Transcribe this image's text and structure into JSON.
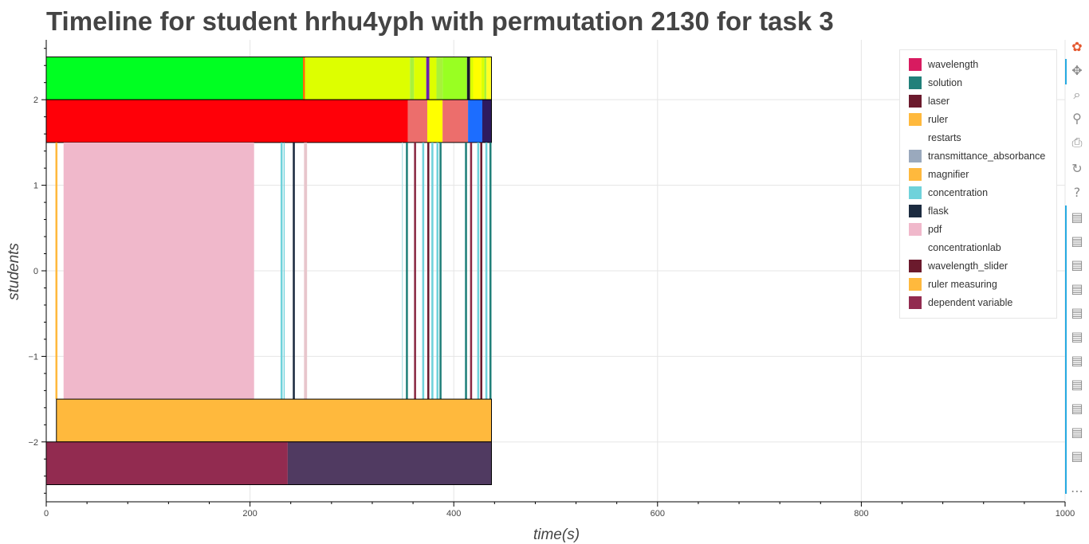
{
  "title": "Timeline for student hrhu4yph with permutation 2130 for task 3",
  "chart_data": {
    "type": "timeline",
    "xlabel": "time(s)",
    "ylabel": "students",
    "xlim": [
      0,
      1000
    ],
    "ylim": [
      -2.7,
      2.7
    ],
    "x_ticks": [
      0,
      200,
      400,
      600,
      800,
      1000
    ],
    "y_ticks": [
      -2,
      -1,
      0,
      1,
      2
    ],
    "x_tick_labels": [
      "0",
      "200",
      "400",
      "600",
      "800",
      "1000"
    ],
    "y_tick_labels": [
      "−2",
      "−1",
      "0",
      "1",
      "2"
    ],
    "grid": true,
    "legend_position": "top-right",
    "legend": [
      {
        "label": "wavelength",
        "color": "#d81b60"
      },
      {
        "label": "solution",
        "color": "#21807a"
      },
      {
        "label": "laser",
        "color": "#6b1a2d"
      },
      {
        "label": "ruler",
        "color": "#ffb93d"
      },
      {
        "label": "restarts",
        "color": ""
      },
      {
        "label": "transmittance_absorbance",
        "color": "#9aa9bd"
      },
      {
        "label": "magnifier",
        "color": "#ffb93d"
      },
      {
        "label": "concentration",
        "color": "#6fd2db"
      },
      {
        "label": "flask",
        "color": "#1c2b40"
      },
      {
        "label": "pdf",
        "color": "#f0b8cb"
      },
      {
        "label": "concentrationlab",
        "color": ""
      },
      {
        "label": "wavelength_slider",
        "color": "#6b1a2d"
      },
      {
        "label": "ruler measuring",
        "color": "#ffb93d"
      },
      {
        "label": "dependent variable",
        "color": "#922b50"
      }
    ],
    "bands": [
      {
        "name": "row-top",
        "y": [
          2.0,
          2.5
        ],
        "segments": [
          {
            "x0": 0,
            "x1": 252,
            "color": "#00ff22"
          },
          {
            "x0": 252,
            "x1": 254,
            "color": "#ff6600"
          },
          {
            "x0": 254,
            "x1": 357,
            "color": "#ddff00"
          },
          {
            "x0": 357,
            "x1": 361,
            "color": "#a8f23a"
          },
          {
            "x0": 361,
            "x1": 373,
            "color": "#ddff00"
          },
          {
            "x0": 373,
            "x1": 376,
            "color": "#6a1fb0"
          },
          {
            "x0": 376,
            "x1": 383,
            "color": "#ddff00"
          },
          {
            "x0": 383,
            "x1": 389,
            "color": "#a8f23a"
          },
          {
            "x0": 389,
            "x1": 413,
            "color": "#99ff22"
          },
          {
            "x0": 413,
            "x1": 416,
            "color": "#1a1a2e"
          },
          {
            "x0": 416,
            "x1": 419,
            "color": "#ddff00"
          },
          {
            "x0": 419,
            "x1": 427,
            "color": "#ffff00"
          },
          {
            "x0": 427,
            "x1": 430,
            "color": "#ddff00"
          },
          {
            "x0": 430,
            "x1": 432,
            "color": "#a8f23a"
          },
          {
            "x0": 432,
            "x1": 437,
            "color": "#ffff22"
          }
        ]
      },
      {
        "name": "row-second",
        "y": [
          1.5,
          2.0
        ],
        "segments": [
          {
            "x0": 0,
            "x1": 355,
            "color": "#ff0008"
          },
          {
            "x0": 355,
            "x1": 374,
            "color": "#ec6e6c"
          },
          {
            "x0": 374,
            "x1": 389,
            "color": "#ffff00"
          },
          {
            "x0": 389,
            "x1": 414,
            "color": "#ec6e6c"
          },
          {
            "x0": 414,
            "x1": 428,
            "color": "#1c6dff"
          },
          {
            "x0": 428,
            "x1": 437,
            "color": "#2e1a5e"
          }
        ]
      },
      {
        "name": "row-middle",
        "y": [
          -1.5,
          1.5
        ],
        "segments": [
          {
            "x0": 9,
            "x1": 11,
            "color": "#ffb93d"
          },
          {
            "x0": 17,
            "x1": 204,
            "color": "#f0b8cb"
          },
          {
            "x0": 230,
            "x1": 232,
            "color": "#6fd2db"
          },
          {
            "x0": 233,
            "x1": 234,
            "color": "#6fd2db"
          },
          {
            "x0": 242,
            "x1": 244,
            "color": "#1c2b40"
          },
          {
            "x0": 253,
            "x1": 256,
            "color": "#e8c6cc"
          },
          {
            "x0": 349,
            "x1": 350,
            "color": "#b7e6ea"
          },
          {
            "x0": 353,
            "x1": 355,
            "color": "#21807a"
          },
          {
            "x0": 361,
            "x1": 363,
            "color": "#8b2a44"
          },
          {
            "x0": 369,
            "x1": 371,
            "color": "#6fd2db"
          },
          {
            "x0": 374,
            "x1": 376,
            "color": "#6b1a2d"
          },
          {
            "x0": 378,
            "x1": 380,
            "color": "#6fd2db"
          },
          {
            "x0": 383,
            "x1": 385,
            "color": "#6fd2db"
          },
          {
            "x0": 386,
            "x1": 388,
            "color": "#21807a"
          },
          {
            "x0": 411,
            "x1": 413,
            "color": "#21807a"
          },
          {
            "x0": 416,
            "x1": 418,
            "color": "#8b2a44"
          },
          {
            "x0": 423,
            "x1": 425,
            "color": "#6fd2db"
          },
          {
            "x0": 426,
            "x1": 428,
            "color": "#6b1a2d"
          },
          {
            "x0": 431,
            "x1": 433,
            "color": "#6fd2db"
          },
          {
            "x0": 435,
            "x1": 437,
            "color": "#21807a"
          }
        ]
      },
      {
        "name": "row-lower",
        "y": [
          -2.0,
          -1.5
        ],
        "segments": [
          {
            "x0": 10,
            "x1": 437,
            "color": "#ffb93d"
          }
        ]
      },
      {
        "name": "row-bottom",
        "y": [
          -2.5,
          -2.0
        ],
        "segments": [
          {
            "x0": 0,
            "x1": 237,
            "color": "#922b50"
          },
          {
            "x0": 237,
            "x1": 437,
            "color": "#503a61"
          }
        ]
      }
    ]
  },
  "toolbar": {
    "tools": [
      {
        "name": "bokeh-logo-icon",
        "glyph": "✿"
      },
      {
        "name": "pan-icon",
        "glyph": "✥"
      },
      {
        "name": "box-zoom-icon",
        "glyph": "⌕"
      },
      {
        "name": "wheel-zoom-icon",
        "glyph": "⚲"
      },
      {
        "name": "save-icon",
        "glyph": "⎙"
      },
      {
        "name": "reset-icon",
        "glyph": "↻"
      },
      {
        "name": "help-icon",
        "glyph": "?"
      },
      {
        "name": "hover-icon",
        "glyph": "▤"
      },
      {
        "name": "hover-icon",
        "glyph": "▤"
      },
      {
        "name": "hover-icon",
        "glyph": "▤"
      },
      {
        "name": "hover-icon",
        "glyph": "▤"
      },
      {
        "name": "hover-icon",
        "glyph": "▤"
      },
      {
        "name": "hover-icon",
        "glyph": "▤"
      },
      {
        "name": "hover-icon",
        "glyph": "▤"
      },
      {
        "name": "hover-icon",
        "glyph": "▤"
      },
      {
        "name": "hover-icon",
        "glyph": "▤"
      },
      {
        "name": "hover-icon",
        "glyph": "▤"
      },
      {
        "name": "hover-icon",
        "glyph": "▤"
      },
      {
        "name": "more-icon",
        "glyph": "⋯"
      }
    ]
  }
}
